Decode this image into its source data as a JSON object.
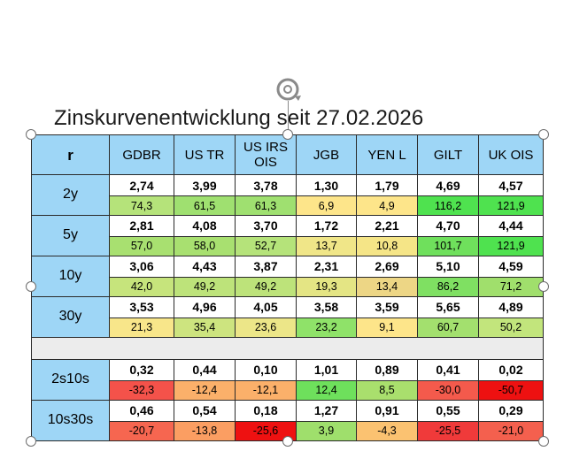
{
  "title": "Zinskurvenentwicklung seit 27.02.2026",
  "table": {
    "corner": "r",
    "columns": [
      "GDBR",
      "US TR",
      "US IRS OIS",
      "JGB",
      "YEN L",
      "GILT",
      "UK OIS"
    ],
    "tenor_rows": [
      {
        "label": "2y",
        "values": [
          "2,74",
          "3,99",
          "3,78",
          "1,30",
          "1,79",
          "4,69",
          "4,57"
        ],
        "changes": [
          "74,3",
          "61,5",
          "61,3",
          "6,9",
          "4,9",
          "116,2",
          "121,9"
        ],
        "colors": [
          "#b5e37a",
          "#9fe070",
          "#9fe070",
          "#fde58a",
          "#fde58a",
          "#4fe24f",
          "#4fe24f"
        ]
      },
      {
        "label": "5y",
        "values": [
          "2,81",
          "4,08",
          "3,70",
          "1,72",
          "2,21",
          "4,70",
          "4,44"
        ],
        "changes": [
          "57,0",
          "58,0",
          "52,7",
          "13,7",
          "10,8",
          "101,7",
          "121,9"
        ],
        "colors": [
          "#a8e070",
          "#a8e070",
          "#b5e37a",
          "#f0e688",
          "#f5e587",
          "#6fe05c",
          "#4fe24f"
        ]
      },
      {
        "label": "10y",
        "values": [
          "3,06",
          "4,43",
          "3,87",
          "2,31",
          "2,69",
          "5,10",
          "4,59"
        ],
        "changes": [
          "42,0",
          "49,2",
          "49,2",
          "19,3",
          "13,4",
          "86,2",
          "71,2"
        ],
        "colors": [
          "#c6e47c",
          "#bde37a",
          "#bde37a",
          "#e4e584",
          "#edd685",
          "#7fe062",
          "#a0df6c"
        ]
      },
      {
        "label": "30y",
        "values": [
          "3,53",
          "4,96",
          "4,05",
          "3,58",
          "3,59",
          "5,65",
          "4,89"
        ],
        "changes": [
          "21,3",
          "35,4",
          "23,6",
          "23,2",
          "9,1",
          "60,7",
          "50,2"
        ],
        "colors": [
          "#f8e68a",
          "#cde47f",
          "#ece688",
          "#8fe269",
          "#fde58a",
          "#a3e06e",
          "#c2e57c"
        ]
      }
    ],
    "spread_rows": [
      {
        "label": "2s10s",
        "values": [
          "0,32",
          "0,44",
          "0,10",
          "1,01",
          "0,89",
          "0,41",
          "0,02"
        ],
        "changes": [
          "-32,3",
          "-12,4",
          "-12,1",
          "12,4",
          "8,5",
          "-30,0",
          "-50,7"
        ],
        "colors": [
          "#f4524a",
          "#fbb06a",
          "#fbb06a",
          "#6ee05c",
          "#a9df6d",
          "#f45a4c",
          "#ee1111"
        ]
      },
      {
        "label": "10s30s",
        "values": [
          "0,46",
          "0,54",
          "0,18",
          "1,27",
          "0,91",
          "0,55",
          "0,29"
        ],
        "changes": [
          "-20,7",
          "-13,8",
          "-25,6",
          "3,9",
          "-4,3",
          "-25,5",
          "-21,0"
        ],
        "colors": [
          "#f66650",
          "#fb9e62",
          "#ee1111",
          "#9fdf6c",
          "#fbc271",
          "#f03a3a",
          "#f4604e"
        ]
      }
    ]
  }
}
